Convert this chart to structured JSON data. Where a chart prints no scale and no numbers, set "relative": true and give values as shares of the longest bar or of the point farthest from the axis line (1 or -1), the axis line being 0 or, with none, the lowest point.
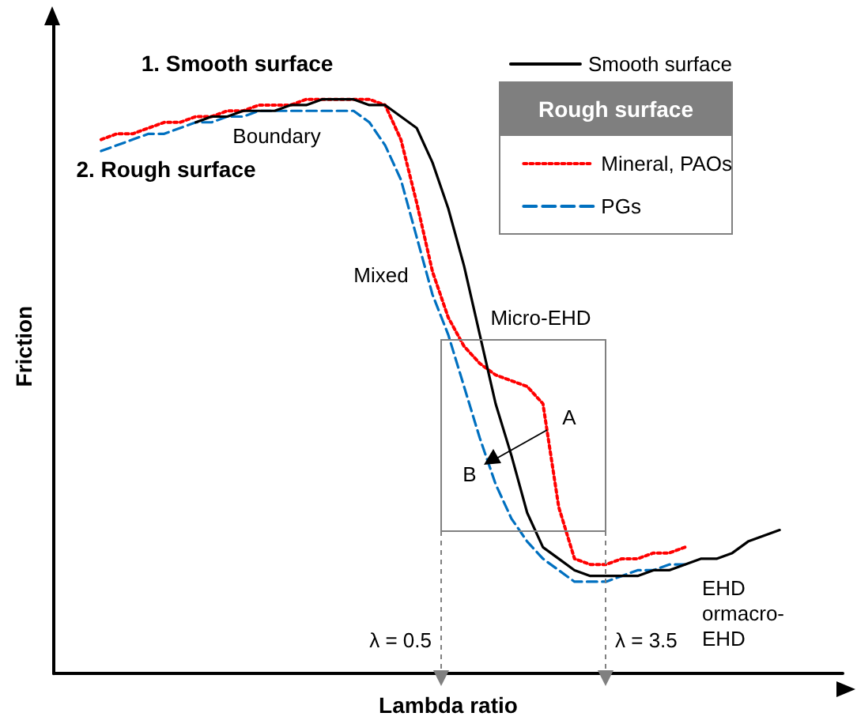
{
  "chart_data": {
    "type": "line",
    "relative": true,
    "xlabel": "Lambda ratio",
    "ylabel": "Friction",
    "legend": "top right",
    "legend_title": "Rough surface",
    "grid": false,
    "marker": "none",
    "categories": [
      null,
      null,
      null,
      null,
      null,
      null,
      null,
      null,
      null,
      null,
      null,
      null,
      null,
      null,
      null,
      null,
      null,
      null,
      null,
      null,
      null,
      null,
      null,
      null,
      null,
      null,
      null,
      null,
      null,
      null,
      null,
      null,
      null,
      null,
      null,
      null,
      null,
      null,
      null,
      null,
      null,
      null,
      null,
      null,
      null,
      null,
      null,
      null,
      null,
      null,
      null
    ],
    "series": [
      {
        "name": "Smooth surface",
        "color": "#000000",
        "line_style": "solid",
        "values": [
          null,
          null,
          null,
          null,
          null,
          null,
          null,
          null,
          null,
          0.96,
          0.97,
          0.97,
          0.98,
          0.98,
          0.98,
          0.99,
          0.99,
          1.0,
          1.0,
          1.0,
          0.99,
          0.99,
          0.97,
          0.95,
          0.89,
          0.81,
          0.71,
          0.59,
          0.47,
          0.38,
          0.28,
          0.22,
          0.2,
          0.18,
          0.17,
          0.17,
          0.17,
          0.17,
          0.18,
          0.18,
          0.19,
          0.2,
          0.2,
          0.21,
          0.23,
          0.24,
          0.25,
          null,
          null,
          null,
          null
        ]
      },
      {
        "name": "Mineral, PAOs",
        "color": "#ff0000",
        "line_style": "dotted",
        "values": [
          null,
          null,
          null,
          0.93,
          0.94,
          0.94,
          0.95,
          0.96,
          0.96,
          0.97,
          0.97,
          0.98,
          0.98,
          0.99,
          0.99,
          0.99,
          1.0,
          1.0,
          1.0,
          1.0,
          1.0,
          0.99,
          0.93,
          0.82,
          0.7,
          0.62,
          0.57,
          0.54,
          0.52,
          0.51,
          0.5,
          0.47,
          0.29,
          0.2,
          0.19,
          0.19,
          0.2,
          0.2,
          0.21,
          0.21,
          0.22,
          null,
          null,
          null,
          null,
          null,
          null,
          null,
          null,
          null,
          null
        ]
      },
      {
        "name": "PGs",
        "color": "#0070c0",
        "line_style": "dashed",
        "values": [
          null,
          null,
          null,
          0.91,
          0.92,
          0.93,
          0.94,
          0.94,
          0.95,
          0.96,
          0.96,
          0.97,
          0.97,
          0.98,
          0.98,
          0.98,
          0.98,
          0.98,
          0.98,
          0.98,
          0.96,
          0.92,
          0.86,
          0.76,
          0.66,
          0.59,
          0.5,
          0.41,
          0.33,
          0.27,
          0.23,
          0.2,
          0.18,
          0.16,
          0.16,
          0.16,
          0.17,
          0.18,
          0.18,
          0.19,
          0.19,
          null,
          null,
          null,
          null,
          null,
          null,
          null,
          null,
          null,
          null
        ]
      }
    ],
    "annotations": [
      "1. Smooth surface",
      "2. Rough surface",
      "Boundary",
      "Mixed",
      "Micro-EHD",
      "A",
      "B",
      "EHD ormacro-EHD",
      "λ = 0.5",
      "λ = 3.5"
    ]
  }
}
